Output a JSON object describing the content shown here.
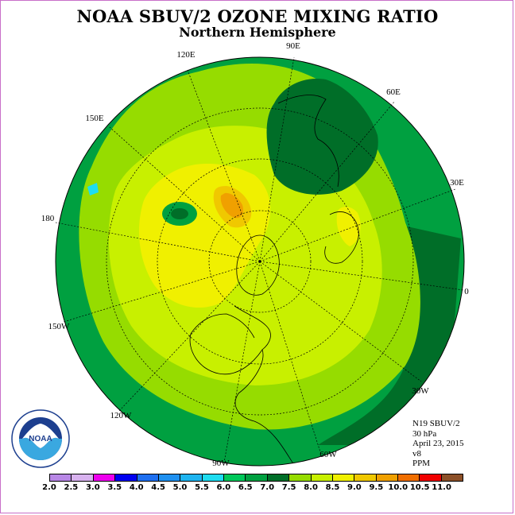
{
  "title": "NOAA SBUV/2 OZONE MIXING RATIO",
  "subtitle": "Northern Hemisphere",
  "map": {
    "projection": "north-polar-stereographic",
    "longitude_labels": [
      "90E",
      "60E",
      "30E",
      "0",
      "30W",
      "60W",
      "90W",
      "120W",
      "150W",
      "180",
      "150E",
      "120E"
    ]
  },
  "info": {
    "satellite": "N19 SBUV/2",
    "level": "30 hPa",
    "date": "April 23, 2015",
    "version": "v8",
    "units": "PPM"
  },
  "logo_text": "NOAA",
  "colorbar": {
    "levels": [
      "2.0",
      "2.5",
      "3.0",
      "3.5",
      "4.0",
      "4.5",
      "5.0",
      "5.5",
      "6.0",
      "6.5",
      "7.0",
      "7.5",
      "8.0",
      "8.5",
      "9.0",
      "9.5",
      "10.0",
      "10.5",
      "11.0"
    ],
    "colors": [
      "#b887e6",
      "#d8b2ef",
      "#ee00ee",
      "#0000f0",
      "#1e6ff0",
      "#1e90f0",
      "#1eb4f0",
      "#1edcf0",
      "#00c85a",
      "#00a040",
      "#006e28",
      "#96dc00",
      "#c8f000",
      "#f0f000",
      "#f0c800",
      "#f0a000",
      "#f06e00",
      "#f00000",
      "#8c5028"
    ]
  }
}
